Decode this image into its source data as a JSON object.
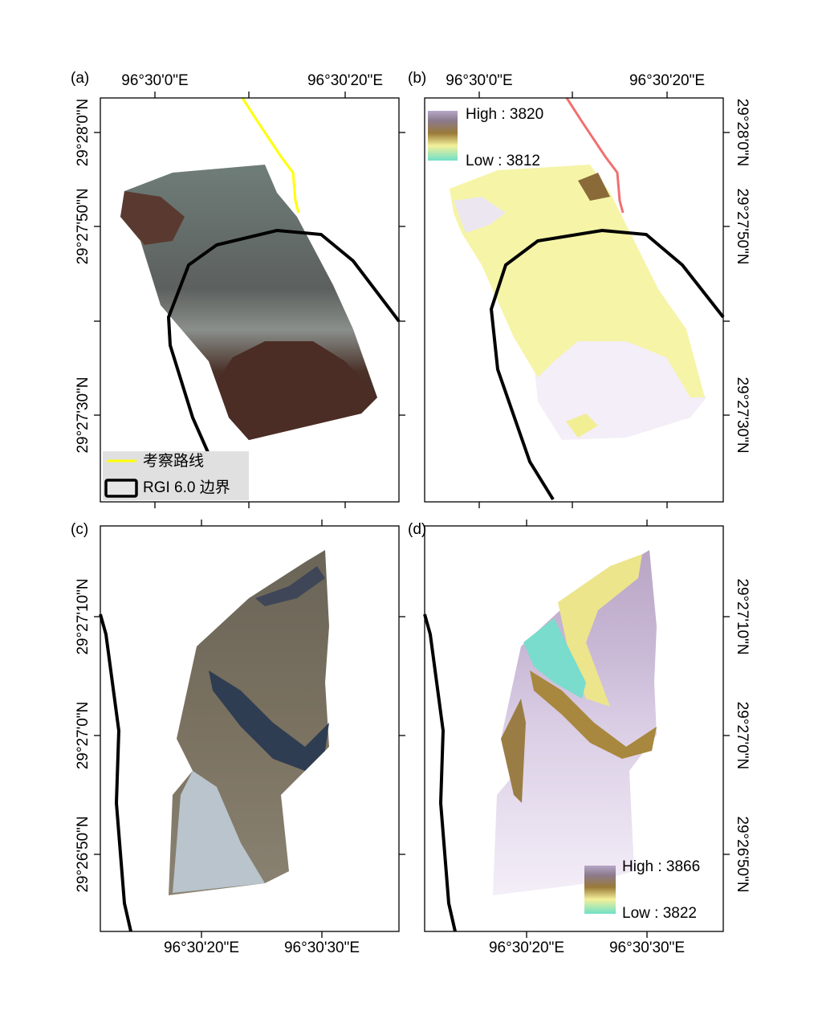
{
  "panels": [
    {
      "label": "(a)",
      "top_ticks": [
        "96°30'0\"E",
        "96°30'20\"E"
      ],
      "left_ticks": [
        "29°28'0\"N",
        "29°27'50\"N",
        "29°27'30\"N"
      ],
      "legend": [
        "考察路线",
        "RGI 6.0 边界"
      ]
    },
    {
      "label": "(b)",
      "top_ticks": [
        "96°30'0\"E",
        "96°30'20\"E"
      ],
      "right_ticks": [
        "29°28'0\"N",
        "29°27'50\"N",
        "29°27'30\"N"
      ],
      "legend": [
        "High : 3820",
        "Low : 3812"
      ]
    },
    {
      "label": "(c)",
      "left_ticks": [
        "29°27'10\"N",
        "29°27'0\"N",
        "29°26'50\"N"
      ],
      "bottom_ticks": [
        "96°30'20\"E",
        "96°30'30\"E"
      ]
    },
    {
      "label": "(d)",
      "right_ticks": [
        "29°27'10\"N",
        "29°27'0\"N",
        "29°26'50\"N"
      ],
      "bottom_ticks": [
        "96°30'20\"E",
        "96°30'30\"E"
      ],
      "legend": [
        "High : 3866",
        "Low : 3822"
      ]
    }
  ]
}
